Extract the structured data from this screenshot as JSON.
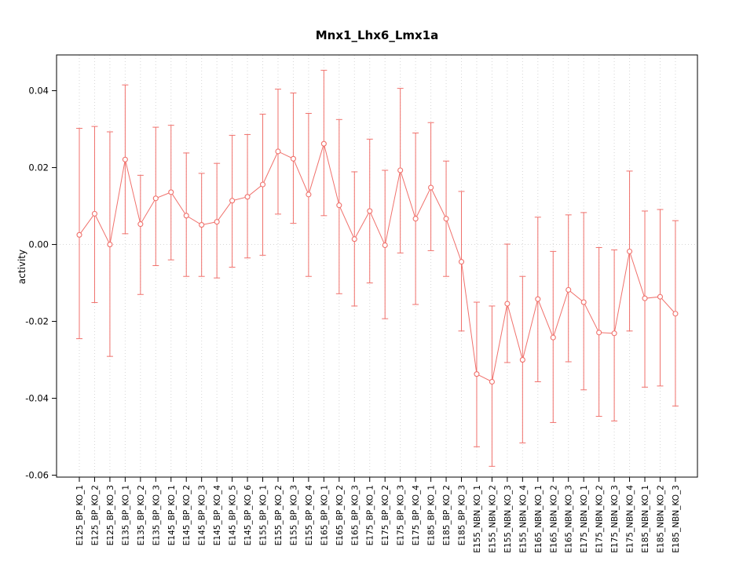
{
  "chart_data": {
    "type": "line",
    "title": "Mnx1_Lhx6_Lmx1a",
    "xlabel": "",
    "ylabel": "activity",
    "ylim": [
      -0.06,
      0.045
    ],
    "legend": "none",
    "grid": {
      "vertical_dotted": true,
      "zero_line_dotted": true
    },
    "point_style": "open-circle-with-error-bars",
    "colors": {
      "series": "#f0716c",
      "grid": "#d6d6d6",
      "axis": "#000000",
      "background": "#ffffff"
    },
    "yticks": {
      "values": [
        -0.06,
        -0.04,
        -0.02,
        0,
        0.02,
        0.04
      ],
      "labels": [
        "-0.06",
        "-0.04",
        "-0.02",
        "0.00",
        "0.02",
        "0.04"
      ]
    },
    "categories": [
      "E125_BP_KO_1",
      "E125_BP_KO_2",
      "E125_BP_KO_3",
      "E135_BP_KO_1",
      "E135_BP_KO_2",
      "E135_BP_KO_3",
      "E145_BP_KO_1",
      "E145_BP_KO_2",
      "E145_BP_KO_3",
      "E145_BP_KO_4",
      "E145_BP_KO_5",
      "E145_BP_KO_6",
      "E155_BP_KO_1",
      "E155_BP_KO_2",
      "E155_BP_KO_3",
      "E155_BP_KO_4",
      "E165_BP_KO_1",
      "E165_BP_KO_2",
      "E165_BP_KO_3",
      "E175_BP_KO_1",
      "E175_BP_KO_2",
      "E175_BP_KO_3",
      "E175_BP_KO_4",
      "E185_BP_KO_1",
      "E185_BP_KO_2",
      "E185_BP_KO_3",
      "E155_NBN_KO_1",
      "E155_NBN_KO_2",
      "E155_NBN_KO_3",
      "E155_NBN_KO_4",
      "E165_NBN_KO_1",
      "E165_NBN_KO_2",
      "E165_NBN_KO_3",
      "E175_NBN_KO_1",
      "E175_NBN_KO_2",
      "E175_NBN_KO_3",
      "E175_NBN_KO_4",
      "E185_NBN_KO_1",
      "E185_NBN_KO_2",
      "E185_NBN_KO_3"
    ],
    "series": [
      {
        "name": "activity",
        "means": [
          0.0025,
          0.008,
          0.0,
          0.0221,
          0.0053,
          0.012,
          0.0136,
          0.0075,
          0.0051,
          0.0059,
          0.0114,
          0.0124,
          0.0156,
          0.0242,
          0.0223,
          0.013,
          0.0262,
          0.0102,
          0.0014,
          0.0087,
          -0.0002,
          0.0193,
          0.0067,
          0.0148,
          0.0067,
          -0.0045,
          -0.0337,
          -0.0357,
          -0.0154,
          -0.03,
          -0.0142,
          -0.0242,
          -0.0118,
          -0.015,
          -0.0229,
          -0.0231,
          -0.0018,
          -0.014,
          -0.0136,
          -0.018
        ],
        "lower": [
          -0.0245,
          -0.0151,
          -0.0291,
          0.0028,
          -0.013,
          -0.0055,
          -0.004,
          -0.0083,
          -0.0083,
          -0.0087,
          -0.0059,
          -0.0035,
          -0.0028,
          0.0079,
          0.0055,
          -0.0083,
          0.0075,
          -0.0128,
          -0.016,
          -0.01,
          -0.0193,
          -0.0022,
          -0.0156,
          -0.0016,
          -0.0083,
          -0.0225,
          -0.0526,
          -0.0577,
          -0.0307,
          -0.0516,
          -0.0357,
          -0.0463,
          -0.0305,
          -0.0378,
          -0.0447,
          -0.0459,
          -0.0225,
          -0.0371,
          -0.0368,
          -0.042
        ],
        "upper": [
          0.0302,
          0.0307,
          0.0293,
          0.0415,
          0.018,
          0.0305,
          0.031,
          0.0238,
          0.0185,
          0.0211,
          0.0284,
          0.0286,
          0.0339,
          0.0404,
          0.0394,
          0.0341,
          0.0453,
          0.0325,
          0.0189,
          0.0274,
          0.0193,
          0.0406,
          0.029,
          0.0317,
          0.0217,
          0.0138,
          -0.015,
          -0.016,
          0.0001,
          -0.0083,
          0.0071,
          -0.0018,
          0.0077,
          0.0083,
          -0.0008,
          -0.0014,
          0.0191,
          0.0087,
          0.0091,
          0.0062
        ]
      }
    ]
  }
}
